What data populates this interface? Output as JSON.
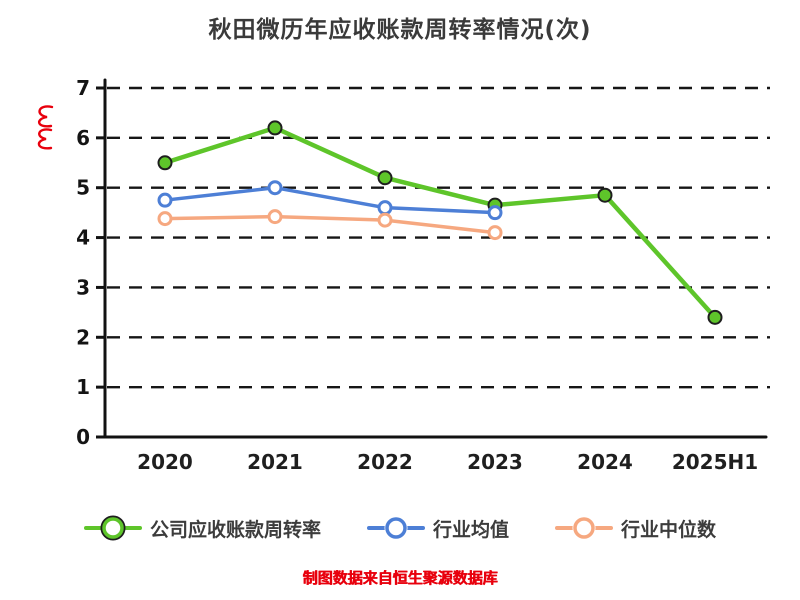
{
  "footer": {
    "caption": "制图数据来自恒生聚源数据库"
  },
  "annotation": {
    "mark": "red-squiggle",
    "color": "#E8000D"
  },
  "chart_data": {
    "type": "line",
    "title": "秋田微历年应收账款周转率情况(次)",
    "categories": [
      "2020",
      "2021",
      "2022",
      "2023",
      "2024",
      "2025H1"
    ],
    "series": [
      {
        "name": "公司应收账款周转率",
        "color": "#5EC52A",
        "marker_fill": "#5EC52A",
        "marker_stroke": "#1E1E1E",
        "values": [
          5.5,
          6.2,
          5.2,
          4.65,
          4.85,
          2.4
        ]
      },
      {
        "name": "行业均值",
        "color": "#4D7FD6",
        "marker_fill": "#FFFFFF",
        "marker_stroke": "#4D7FD6",
        "values": [
          4.75,
          5.0,
          4.6,
          4.5,
          null,
          null
        ]
      },
      {
        "name": "行业中位数",
        "color": "#F6A880",
        "marker_fill": "#FFFFFF",
        "marker_stroke": "#F6A880",
        "values": [
          4.38,
          4.42,
          4.35,
          4.1,
          null,
          null
        ]
      }
    ],
    "xlabel": "",
    "ylabel": "",
    "ylim": [
      0,
      7
    ],
    "yticks": [
      0,
      1,
      2,
      3,
      4,
      5,
      6,
      7
    ],
    "grid": "dashed-horizontal",
    "legend_position": "bottom"
  }
}
